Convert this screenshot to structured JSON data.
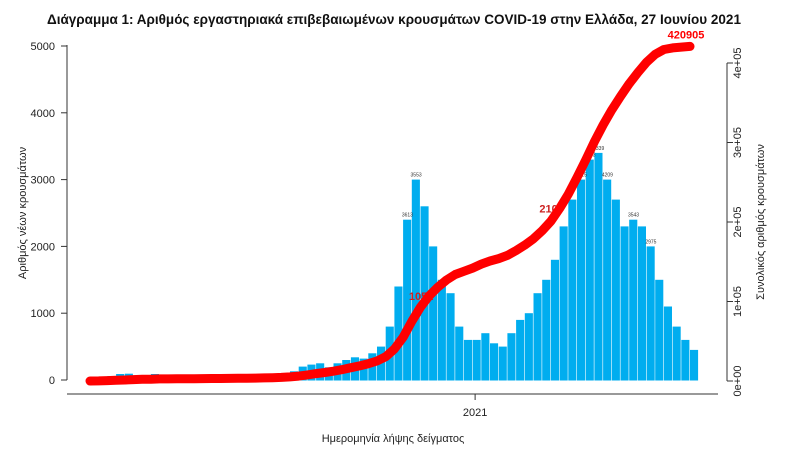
{
  "chart_data": {
    "type": "bar",
    "title": "Διάγραμμα 1: Αριθμός εργαστηριακά επιβεβαιωμένων κρουσμάτων COVID-19 στην Ελλάδα, 27 Ιουνίου 2021",
    "xlabel": "Ημερομηνία λήψης δείγματος",
    "ylabel": "Αριθμός νέων κρουσμάτων",
    "y2label": "Συνολικός αριθμός κρουσμάτων",
    "x_start": "2020-02-26",
    "x_end": "2021-06-27",
    "x_ticks": [
      {
        "date": "2021-01-01",
        "label": "2021"
      }
    ],
    "ylim": [
      0,
      5000
    ],
    "y_ticks": [
      "0",
      "1000",
      "2000",
      "3000",
      "4000",
      "5000"
    ],
    "y2lim": [
      0,
      400000
    ],
    "y2_ticks": [
      "0e+00",
      "1e+05",
      "2e+05",
      "3e+05",
      "4e+05"
    ],
    "grid": false,
    "colors": {
      "bars": "#00adef",
      "cumulative": "#ff0000",
      "axis": "#333333"
    },
    "series": [
      {
        "type": "bar",
        "resolution": "weekly",
        "values": [
          5,
          30,
          60,
          90,
          95,
          70,
          60,
          90,
          80,
          20,
          15,
          12,
          10,
          10,
          12,
          15,
          20,
          25,
          20,
          25,
          30,
          40,
          60,
          130,
          200,
          230,
          250,
          190,
          250,
          300,
          340,
          320,
          400,
          500,
          800,
          1400,
          2400,
          3000,
          2600,
          2000,
          1500,
          1300,
          800,
          600,
          600,
          700,
          550,
          500,
          700,
          900,
          1000,
          1300,
          1500,
          1800,
          2300,
          2700,
          3000,
          3300,
          3400,
          3000,
          2700,
          2300,
          2400,
          2300,
          2000,
          1500,
          1100,
          800,
          600,
          450
        ]
      },
      {
        "type": "line",
        "axis": "right",
        "resolution": "weekly",
        "values": [
          0,
          100,
          500,
          900,
          1300,
          1800,
          2100,
          2300,
          2600,
          2700,
          2800,
          2900,
          2900,
          3000,
          3100,
          3200,
          3300,
          3400,
          3500,
          3700,
          3900,
          4100,
          4500,
          5100,
          6200,
          7700,
          9300,
          10700,
          12300,
          14400,
          16700,
          19000,
          21700,
          25200,
          30600,
          40300,
          55000,
          75000,
          93000,
          107000,
          118000,
          127000,
          134000,
          138000,
          142000,
          147000,
          151000,
          154000,
          158000,
          164000,
          171000,
          179000,
          189000,
          201000,
          217000,
          235000,
          256000,
          278000,
          301000,
          322000,
          341000,
          358000,
          374000,
          388000,
          401000,
          411000,
          417000,
          419000,
          420000,
          420905
        ]
      }
    ],
    "data_labels": [
      {
        "week": 36,
        "text": "3613"
      },
      {
        "week": 37,
        "text": "3553"
      },
      {
        "week": 56,
        "text": "4615"
      },
      {
        "week": 57,
        "text": "4853"
      },
      {
        "week": 58,
        "text": "4339"
      },
      {
        "week": 59,
        "text": "4209"
      },
      {
        "week": 62,
        "text": "3543"
      },
      {
        "week": 64,
        "text": "2975"
      }
    ],
    "annotations": [
      {
        "week": 39,
        "text": "1051",
        "color": "#cc2222"
      },
      {
        "week": 54,
        "text": "2107",
        "color": "#cc2222"
      },
      {
        "week": 69,
        "text": "420905",
        "color": "#ff0000"
      }
    ]
  }
}
